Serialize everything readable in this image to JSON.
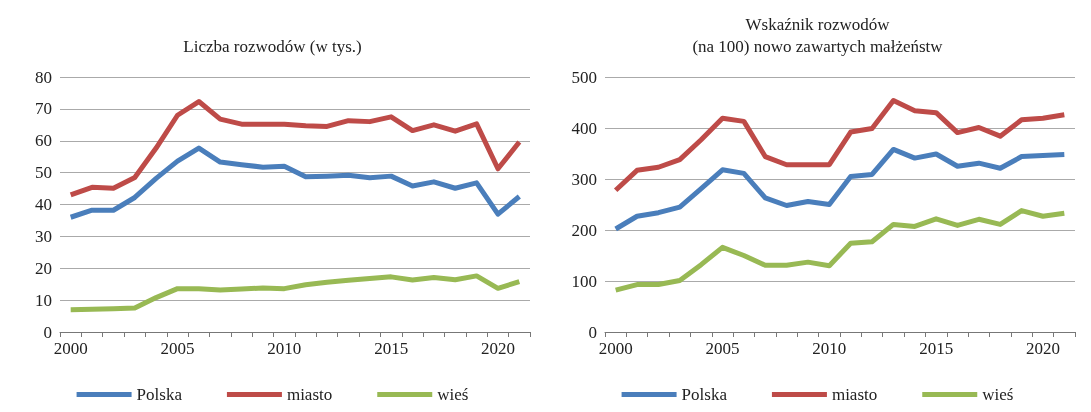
{
  "chart_data": [
    {
      "type": "line",
      "title": "Liczba rozwodów (w tys.)",
      "categories": [
        "2000",
        null,
        null,
        null,
        null,
        "2005",
        null,
        null,
        null,
        null,
        "2010",
        null,
        null,
        null,
        null,
        "2015",
        null,
        null,
        null,
        null,
        "2020",
        null
      ],
      "series": [
        {
          "name": "Polska",
          "color": "#4a7ebb",
          "values": [
            36,
            38.2,
            38.2,
            42.2,
            48.2,
            53.6,
            57.7,
            53.3,
            52.5,
            51.7,
            52,
            48.7,
            48.9,
            49.2,
            48.4,
            48.9,
            45.8,
            47.1,
            45.1,
            46.8,
            37,
            42.5
          ]
        },
        {
          "name": "miasto",
          "color": "#be4b48",
          "values": [
            43,
            45.4,
            45.1,
            48.5,
            57.7,
            68,
            72.3,
            66.8,
            65.2,
            65.2,
            65.2,
            64.7,
            64.5,
            66.3,
            66,
            67.5,
            63.2,
            65,
            63,
            65.3,
            51.2,
            59.6
          ]
        },
        {
          "name": "wieś",
          "color": "#98b954",
          "values": [
            7,
            7.1,
            7.3,
            7.5,
            10.8,
            13.6,
            13.6,
            13.2,
            13.5,
            13.8,
            13.6,
            14.8,
            15.6,
            16.2,
            16.8,
            17.3,
            16.3,
            17.1,
            16.4,
            17.6,
            13.7,
            15.8
          ]
        }
      ],
      "ylim": [
        0,
        80
      ],
      "yticks": [
        0,
        10,
        20,
        30,
        40,
        50,
        60,
        70,
        80
      ],
      "grid": "y",
      "legend": "bottom",
      "marker": "none",
      "line_style": "solid"
    },
    {
      "type": "line",
      "title": "Wskaźnik rozwodów\n(na 100) nowo zawartych małżeństw",
      "categories": [
        "2000",
        null,
        null,
        null,
        null,
        "2005",
        null,
        null,
        null,
        null,
        "2010",
        null,
        null,
        null,
        null,
        "2015",
        null,
        null,
        null,
        null,
        "2020",
        null
      ],
      "series": [
        {
          "name": "Polska",
          "color": "#4a7ebb",
          "values": [
            202,
            227,
            234,
            245,
            281,
            318,
            311,
            263,
            248,
            256,
            250,
            305,
            309,
            358,
            341,
            349,
            325,
            331,
            321,
            344,
            346,
            348
          ]
        },
        {
          "name": "miasto",
          "color": "#be4b48",
          "values": [
            278,
            317,
            323,
            338,
            377,
            419,
            413,
            344,
            328,
            328,
            328,
            392,
            399,
            454,
            434,
            430,
            391,
            401,
            384,
            416,
            419,
            426
          ]
        },
        {
          "name": "wieś",
          "color": "#98b954",
          "values": [
            82,
            93,
            93,
            101,
            132,
            166,
            150,
            131,
            131,
            137,
            130,
            174,
            177,
            211,
            207,
            222,
            209,
            221,
            211,
            238,
            227,
            233
          ]
        }
      ],
      "ylim": [
        0,
        500
      ],
      "yticks": [
        0,
        100,
        200,
        300,
        400,
        500
      ],
      "grid": "y",
      "legend": "bottom",
      "marker": "none",
      "line_style": "solid"
    }
  ]
}
